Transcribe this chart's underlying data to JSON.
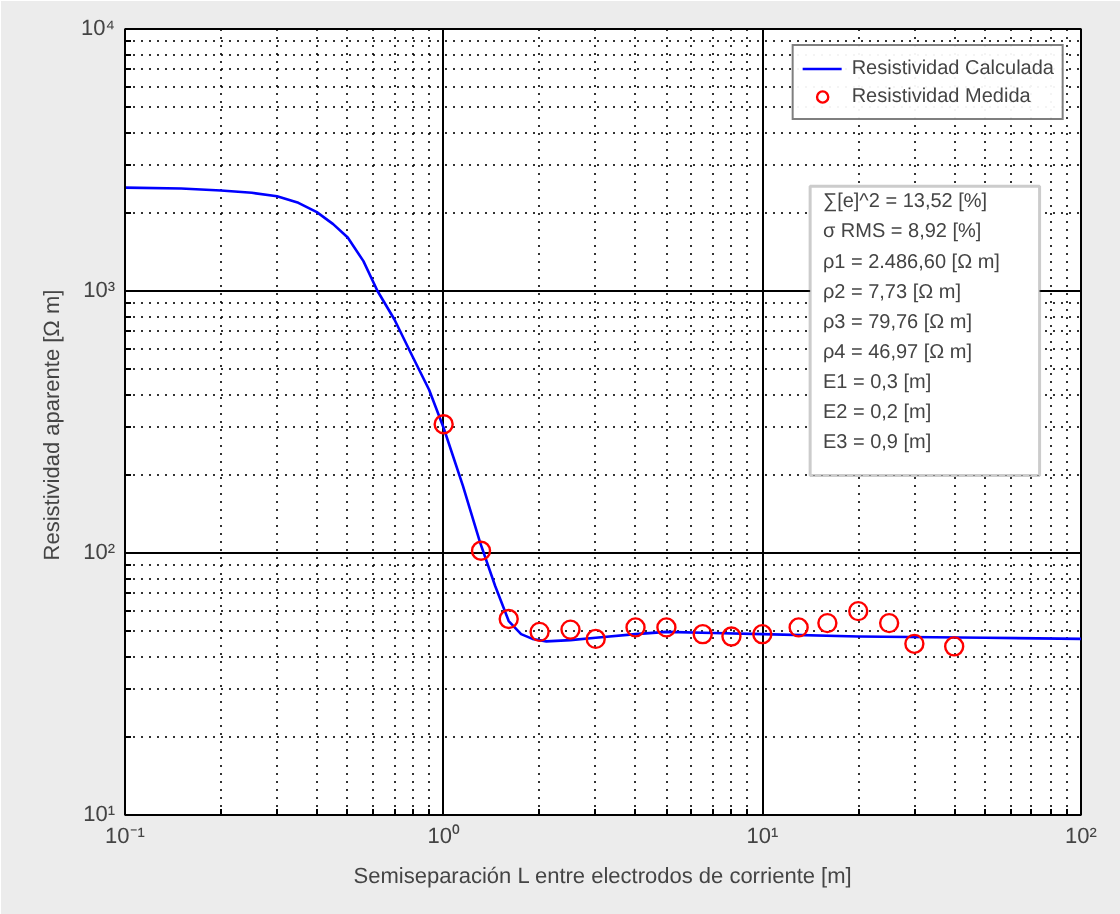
{
  "chart_data": {
    "type": "line",
    "xlabel": "Semiseparación L entre electrodos de corriente [m]",
    "ylabel": "Resistividad aparente  [Ω m]",
    "log": "xy",
    "grid": true,
    "legend": "top right",
    "xlim": [
      0.1,
      100
    ],
    "ylim": [
      10,
      10000
    ],
    "xticks": [
      {
        "value": 0.1,
        "label": "10⁻¹"
      },
      {
        "value": 1,
        "label": "10⁰"
      },
      {
        "value": 10,
        "label": "10¹"
      },
      {
        "value": 100,
        "label": "10²"
      }
    ],
    "yticks": [
      {
        "value": 10,
        "label": "10¹"
      },
      {
        "value": 100,
        "label": "10²"
      },
      {
        "value": 1000,
        "label": "10³"
      },
      {
        "value": 10000,
        "label": "10⁴"
      }
    ],
    "series": [
      {
        "name": "Resistividad Calculada",
        "color": "#0000ff",
        "marker": "none",
        "line_style": "solid",
        "x": [
          0.1,
          0.15,
          0.2,
          0.25,
          0.3,
          0.35,
          0.4,
          0.45,
          0.5,
          0.56,
          0.62,
          0.7,
          0.8,
          0.9,
          1.0,
          1.15,
          1.3,
          1.45,
          1.6,
          1.75,
          1.9,
          2.1,
          2.5,
          3,
          4,
          5,
          7,
          10,
          20,
          50,
          100
        ],
        "values": [
          2480,
          2460,
          2420,
          2370,
          2300,
          2170,
          2000,
          1800,
          1600,
          1300,
          1000,
          780,
          560,
          420,
          300,
          180,
          110,
          75,
          55,
          49,
          47,
          46,
          46.5,
          47.5,
          49,
          50,
          49.5,
          49,
          48,
          47.5,
          47
        ]
      },
      {
        "name": "Resistividad Medida",
        "type": "scatter",
        "color": "#ff0000",
        "marker": "circle",
        "x": [
          1.0,
          1.31,
          1.6,
          2.0,
          2.5,
          3.0,
          4.0,
          5.0,
          6.5,
          8.0,
          10,
          13,
          16,
          20,
          25,
          30,
          40
        ],
        "values": [
          310,
          102,
          56,
          50,
          51,
          47,
          52,
          52,
          49,
          48,
          49,
          52,
          54,
          60,
          54,
          45,
          44
        ]
      }
    ],
    "annotations": [
      "∑[e]^2  = 13,52 [%]",
      "σ RMS =   8,92 [%]",
      "ρ1 = 2.486,60 [Ω m]",
      "ρ2 =         7,73 [Ω m]",
      "ρ3 =       79,76 [Ω m]",
      "ρ4 =       46,97 [Ω m]",
      "E1 = 0,3 [m]",
      "E2 = 0,2 [m]",
      "E3 = 0,9 [m]"
    ]
  }
}
